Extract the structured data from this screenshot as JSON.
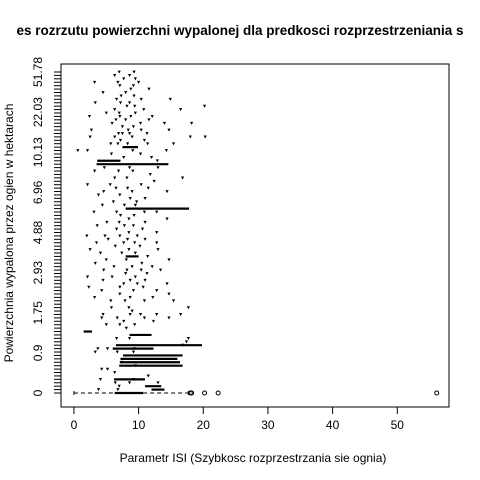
{
  "chart_data": {
    "type": "boxplot",
    "title": "es rozrzutu powierzchni wypalonej dla predkosci rozprzestrzeniania s",
    "xlabel": "Parametr ISI (Szybkosc rozprzestrzania sie ognia)",
    "ylabel": "Powierzchnia wypalona przez ogien w hektarach",
    "xlim": [
      -2,
      58
    ],
    "xticks": [
      0,
      10,
      20,
      30,
      40,
      50
    ],
    "ytick_labels": [
      "0",
      "0.9",
      "1.75",
      "2.93",
      "4.88",
      "6.96",
      "10.13",
      "22.03",
      "51.78"
    ],
    "n_groups": 95,
    "horizontal": true,
    "grid": false,
    "boxes": [
      {
        "group": 1,
        "whisker_low": 0.0,
        "q1": 6.3,
        "median": 8.2,
        "q3": 10.7,
        "whisker_high": 17.7,
        "outliers": [
          18.0,
          18.2,
          20.2,
          22.3,
          56.1
        ]
      },
      {
        "group": 2,
        "q1": 12.0,
        "median": 13.0,
        "q3": 14.0
      },
      {
        "group": 3,
        "q1": 11.0,
        "median": 12.3,
        "q3": 13.5
      },
      {
        "group": 5,
        "q1": 6.2,
        "median": 8.0,
        "q3": 11.0
      },
      {
        "group": 9,
        "q1": 7.0,
        "median": 10.5,
        "q3": 16.8
      },
      {
        "group": 10,
        "q1": 7.1,
        "median": 11.0,
        "q3": 16.4
      },
      {
        "group": 11,
        "q1": 7.2,
        "median": 10.8,
        "q3": 16.0
      },
      {
        "group": 12,
        "q1": 7.6,
        "median": 11.5,
        "q3": 16.8
      },
      {
        "group": 14,
        "q1": 6.0,
        "median": 9.0,
        "q3": 12.3
      },
      {
        "group": 15,
        "q1": 6.5,
        "median": 12.0,
        "q3": 19.8
      },
      {
        "group": 18,
        "q1": 8.6,
        "median": 10.3,
        "q3": 12.0
      },
      {
        "group": 19,
        "q1": 1.5,
        "median": 2.0,
        "q3": 2.8
      },
      {
        "group": 41,
        "q1": 8.0,
        "median": 9.0,
        "q3": 10.0
      },
      {
        "group": 55,
        "q1": 8.0,
        "median": 13.0,
        "q3": 17.8
      },
      {
        "group": 68,
        "q1": 3.5,
        "median": 9.5,
        "q3": 14.6
      },
      {
        "group": 69,
        "q1": 3.6,
        "median": 5.5,
        "q3": 7.2
      },
      {
        "group": 73,
        "q1": 7.5,
        "median": 8.7,
        "q3": 9.9
      }
    ],
    "points": [
      [
        3.8,
        2
      ],
      [
        6.8,
        2
      ],
      [
        7.0,
        3
      ],
      [
        8.6,
        4
      ],
      [
        6.4,
        4
      ],
      [
        13.0,
        4
      ],
      [
        4.1,
        5
      ],
      [
        9.2,
        5
      ],
      [
        11.5,
        6
      ],
      [
        6.3,
        7
      ],
      [
        4.3,
        8
      ],
      [
        5.2,
        8
      ],
      [
        9.5,
        9
      ],
      [
        7.4,
        10
      ],
      [
        3.3,
        13
      ],
      [
        6.7,
        13
      ],
      [
        9.2,
        13
      ],
      [
        3.7,
        14
      ],
      [
        5.2,
        14
      ],
      [
        9.4,
        14
      ],
      [
        16.8,
        15
      ],
      [
        17.4,
        16
      ],
      [
        6.6,
        17
      ],
      [
        8.6,
        17
      ],
      [
        17.7,
        17
      ],
      [
        8.1,
        20
      ],
      [
        5.0,
        21
      ],
      [
        7.1,
        21
      ],
      [
        9.4,
        21
      ],
      [
        7.7,
        22
      ],
      [
        12.3,
        22
      ],
      [
        4.3,
        23
      ],
      [
        6.7,
        23
      ],
      [
        10.9,
        23
      ],
      [
        14.7,
        23
      ],
      [
        4.5,
        24
      ],
      [
        8.7,
        24
      ],
      [
        10.3,
        24
      ],
      [
        12.8,
        24
      ],
      [
        16.5,
        24
      ],
      [
        9.0,
        25
      ],
      [
        5.8,
        26
      ],
      [
        8.5,
        26
      ],
      [
        17.7,
        26
      ],
      [
        5.7,
        28
      ],
      [
        7.9,
        28
      ],
      [
        10.9,
        28
      ],
      [
        15.4,
        28
      ],
      [
        3.2,
        29
      ],
      [
        8.7,
        29
      ],
      [
        12.2,
        29
      ],
      [
        7.1,
        30
      ],
      [
        14.7,
        30
      ],
      [
        4.3,
        31
      ],
      [
        9.2,
        31
      ],
      [
        12.8,
        31
      ],
      [
        2.3,
        32
      ],
      [
        7.1,
        32
      ],
      [
        10.7,
        32
      ],
      [
        7.7,
        33
      ],
      [
        9.8,
        33
      ],
      [
        14.4,
        33
      ],
      [
        4.5,
        34
      ],
      [
        8.7,
        34
      ],
      [
        11.0,
        34
      ],
      [
        2.1,
        35
      ],
      [
        5.9,
        35
      ],
      [
        9.5,
        35
      ],
      [
        8.0,
        36
      ],
      [
        11.3,
        36
      ],
      [
        4.6,
        37
      ],
      [
        8.2,
        37
      ],
      [
        10.4,
        37
      ],
      [
        13.4,
        37
      ],
      [
        6.2,
        38
      ],
      [
        9.0,
        38
      ],
      [
        12.1,
        38
      ],
      [
        3.3,
        39
      ],
      [
        10.5,
        39
      ],
      [
        5.0,
        40
      ],
      [
        8.1,
        40
      ],
      [
        14.7,
        40
      ],
      [
        11.4,
        41
      ],
      [
        4.1,
        42
      ],
      [
        7.4,
        42
      ],
      [
        9.5,
        42
      ],
      [
        2.5,
        43
      ],
      [
        8.5,
        43
      ],
      [
        13.0,
        43
      ],
      [
        6.4,
        44
      ],
      [
        10.2,
        44
      ],
      [
        3.5,
        45
      ],
      [
        7.7,
        45
      ],
      [
        9.4,
        45
      ],
      [
        12.8,
        45
      ],
      [
        5.3,
        46
      ],
      [
        8.3,
        46
      ],
      [
        11.0,
        46
      ],
      [
        2.0,
        47
      ],
      [
        4.8,
        47
      ],
      [
        7.1,
        47
      ],
      [
        9.8,
        47
      ],
      [
        8.5,
        48
      ],
      [
        12.8,
        48
      ],
      [
        6.6,
        49
      ],
      [
        10.6,
        49
      ],
      [
        3.6,
        50
      ],
      [
        7.8,
        50
      ],
      [
        9.2,
        50
      ],
      [
        5.1,
        51
      ],
      [
        7.0,
        51
      ],
      [
        11.0,
        51
      ],
      [
        8.5,
        52
      ],
      [
        14.4,
        52
      ],
      [
        7.2,
        53
      ],
      [
        9.3,
        53
      ],
      [
        3.1,
        54
      ],
      [
        6.6,
        54
      ],
      [
        10.9,
        54
      ],
      [
        12.8,
        54
      ],
      [
        4.4,
        56
      ],
      [
        7.8,
        56
      ],
      [
        9.5,
        56
      ],
      [
        6.1,
        57
      ],
      [
        9.7,
        57
      ],
      [
        8.7,
        58
      ],
      [
        11.0,
        58
      ],
      [
        3.8,
        59
      ],
      [
        7.1,
        59
      ],
      [
        4.6,
        60
      ],
      [
        9.0,
        60
      ],
      [
        14.4,
        60
      ],
      [
        6.5,
        61
      ],
      [
        8.3,
        61
      ],
      [
        11.5,
        61
      ],
      [
        2.1,
        62
      ],
      [
        5.6,
        62
      ],
      [
        10.4,
        62
      ],
      [
        12.4,
        63
      ],
      [
        6.3,
        64
      ],
      [
        8.2,
        64
      ],
      [
        16.8,
        64
      ],
      [
        11.8,
        65
      ],
      [
        3.2,
        66
      ],
      [
        6.9,
        66
      ],
      [
        9.1,
        66
      ],
      [
        4.7,
        67
      ],
      [
        8.6,
        67
      ],
      [
        13.0,
        67
      ],
      [
        12.9,
        69
      ],
      [
        7.7,
        70
      ],
      [
        12.0,
        70
      ],
      [
        5.8,
        71
      ],
      [
        10.3,
        71
      ],
      [
        0.6,
        72
      ],
      [
        2.1,
        72
      ],
      [
        9.1,
        72
      ],
      [
        14.3,
        72
      ],
      [
        5.7,
        74
      ],
      [
        6.8,
        74
      ],
      [
        8.3,
        74
      ],
      [
        11.4,
        74
      ],
      [
        15.4,
        74
      ],
      [
        7.2,
        75
      ],
      [
        10.9,
        75
      ],
      [
        2.5,
        76
      ],
      [
        6.3,
        76
      ],
      [
        9.0,
        76
      ],
      [
        18.0,
        76
      ],
      [
        20.3,
        76
      ],
      [
        6.9,
        77
      ],
      [
        7.5,
        77
      ],
      [
        8.6,
        77
      ],
      [
        11.3,
        77
      ],
      [
        2.7,
        78
      ],
      [
        8.4,
        78
      ],
      [
        10.4,
        78
      ],
      [
        14.7,
        78
      ],
      [
        7.5,
        79
      ],
      [
        9.2,
        79
      ],
      [
        5.9,
        80
      ],
      [
        10.3,
        80
      ],
      [
        14.0,
        80
      ],
      [
        18.2,
        80
      ],
      [
        6.5,
        81
      ],
      [
        8.0,
        81
      ],
      [
        11.6,
        81
      ],
      [
        2.4,
        82
      ],
      [
        7.1,
        82
      ],
      [
        8.8,
        82
      ],
      [
        12.1,
        82
      ],
      [
        5.0,
        83
      ],
      [
        7.0,
        83
      ],
      [
        9.5,
        83
      ],
      [
        6.3,
        84
      ],
      [
        10.8,
        84
      ],
      [
        16.5,
        84
      ],
      [
        8.2,
        85
      ],
      [
        9.4,
        85
      ],
      [
        20.2,
        85
      ],
      [
        3.3,
        86
      ],
      [
        7.2,
        86
      ],
      [
        8.6,
        86
      ],
      [
        6.6,
        87
      ],
      [
        10.4,
        87
      ],
      [
        14.9,
        87
      ],
      [
        7.3,
        88
      ],
      [
        9.3,
        88
      ],
      [
        4.5,
        89
      ],
      [
        8.0,
        89
      ],
      [
        8.8,
        90
      ],
      [
        11.6,
        90
      ],
      [
        7.1,
        91
      ],
      [
        9.2,
        91
      ],
      [
        3.2,
        92
      ],
      [
        6.8,
        92
      ],
      [
        10.0,
        92
      ],
      [
        7.7,
        93
      ],
      [
        9.5,
        93
      ],
      [
        6.3,
        94
      ],
      [
        8.6,
        94
      ],
      [
        9.3,
        95
      ],
      [
        7.0,
        95
      ]
    ]
  }
}
